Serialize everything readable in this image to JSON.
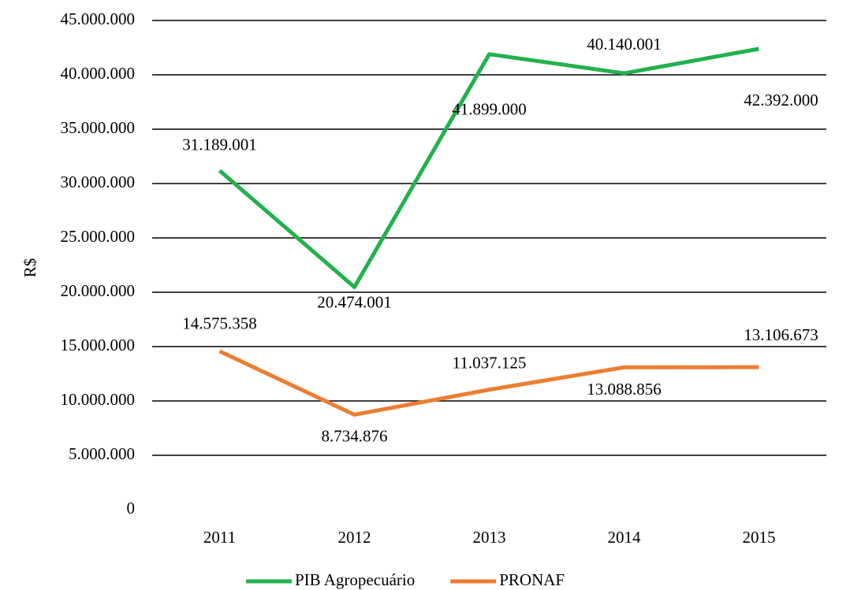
{
  "chart_data": {
    "type": "line",
    "y_axis_label": "R$",
    "categories": [
      "2011",
      "2012",
      "2013",
      "2014",
      "2015"
    ],
    "series": [
      {
        "name": "PIB Agropecuário",
        "color": "#22b14c",
        "values": [
          31189001,
          20474001,
          41899000,
          40140001,
          42392000
        ],
        "value_labels": [
          "31.189.001",
          "20.474.001",
          "41.899.000",
          "40.140.001",
          "42.392.000"
        ]
      },
      {
        "name": "PRONAF",
        "color": "#ed7d31",
        "values": [
          14575358,
          8734876,
          11037125,
          13088856,
          13106673
        ],
        "value_labels": [
          "14.575.358",
          "8.734.876",
          "11.037.125",
          "13.088.856",
          "13.106.673"
        ]
      }
    ],
    "ylim": [
      0,
      45000000
    ],
    "yticks": [
      0,
      {
        "value": 5000000,
        "label": "5.000.000"
      },
      {
        "value": 10000000,
        "label": "10.000.000"
      },
      {
        "value": 15000000,
        "label": "15.000.000"
      },
      {
        "value": 20000000,
        "label": "20.000.000"
      },
      {
        "value": 25000000,
        "label": "25.000.000"
      },
      {
        "value": 30000000,
        "label": "30.000.000"
      },
      {
        "value": 35000000,
        "label": "35.000.000"
      },
      {
        "value": 40000000,
        "label": "40.000.000"
      },
      {
        "value": 45000000,
        "label": "45.000.000"
      }
    ],
    "grid": true,
    "legend": "bottom"
  }
}
